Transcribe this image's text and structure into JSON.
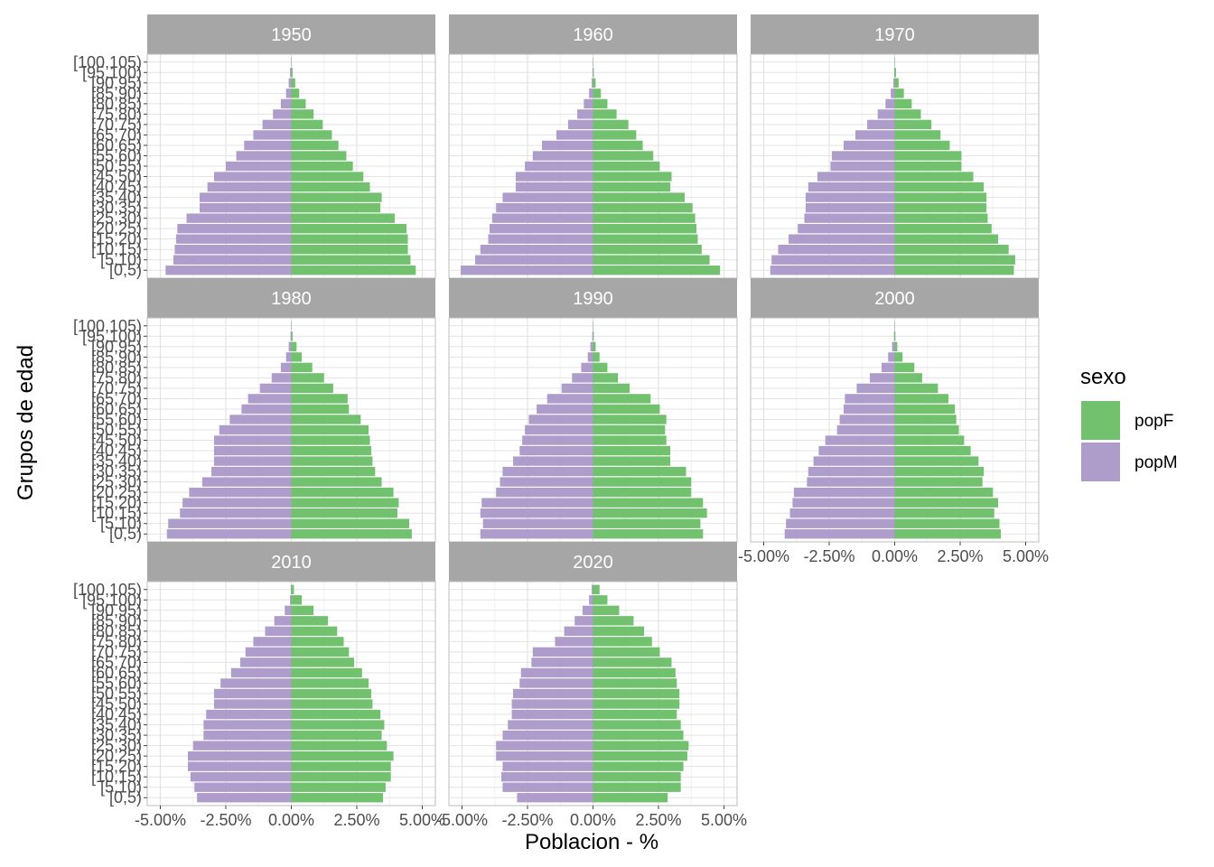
{
  "chart_data": {
    "type": "bar",
    "subtype": "population-pyramid-facets",
    "xlabel": "Poblacion - %",
    "ylabel": "Grupos de edad",
    "xlim": [
      -5.5,
      5.5
    ],
    "x_ticks": [
      -5,
      -2.5,
      0,
      2.5,
      5
    ],
    "x_tick_labels": [
      "-5.00%",
      "-2.50%",
      "0.00%",
      "2.50%",
      "5.00%"
    ],
    "grid": true,
    "legend": {
      "title": "sexo",
      "position": "right",
      "entries": [
        {
          "label": "popF",
          "color": "#71C16E"
        },
        {
          "label": "popM",
          "color": "#AE9CCB"
        }
      ]
    },
    "categories": [
      "[0,5)",
      "[5,10)",
      "[10,15)",
      "[15,20)",
      "[20,25)",
      "[25,30)",
      "[30,35)",
      "[35,40)",
      "[40,45)",
      "[45,50)",
      "[50,55)",
      "[55,60)",
      "[60,65)",
      "[65,70)",
      "[70,75)",
      "[75,80)",
      "[80,85)",
      "[85,90)",
      "[90,95)",
      "[95,100)",
      "[100,105)"
    ],
    "panels": [
      {
        "label": "1950",
        "popF": [
          4.75,
          4.55,
          4.45,
          4.45,
          4.4,
          3.95,
          3.4,
          3.45,
          3.0,
          2.75,
          2.35,
          2.1,
          1.8,
          1.55,
          1.2,
          0.85,
          0.55,
          0.3,
          0.15,
          0.05,
          0.01
        ],
        "popM": [
          -4.8,
          -4.5,
          -4.45,
          -4.4,
          -4.35,
          -4.0,
          -3.5,
          -3.5,
          -3.2,
          -2.95,
          -2.5,
          -2.1,
          -1.8,
          -1.45,
          -1.1,
          -0.7,
          -0.4,
          -0.2,
          -0.1,
          -0.05,
          -0.01
        ]
      },
      {
        "label": "1960",
        "popF": [
          4.85,
          4.45,
          4.15,
          4.0,
          3.95,
          3.9,
          3.8,
          3.5,
          2.95,
          3.0,
          2.55,
          2.3,
          1.9,
          1.65,
          1.35,
          0.9,
          0.55,
          0.3,
          0.1,
          0.03,
          0.01
        ],
        "popM": [
          -5.05,
          -4.5,
          -4.3,
          -4.0,
          -3.95,
          -3.85,
          -3.7,
          -3.45,
          -2.95,
          -2.95,
          -2.6,
          -2.3,
          -1.95,
          -1.4,
          -0.95,
          -0.6,
          -0.35,
          -0.15,
          -0.05,
          -0.02,
          -0.01
        ]
      },
      {
        "label": "1970",
        "popF": [
          4.55,
          4.6,
          4.35,
          3.95,
          3.7,
          3.55,
          3.5,
          3.5,
          3.4,
          3.0,
          2.55,
          2.55,
          2.1,
          1.75,
          1.4,
          1.0,
          0.65,
          0.35,
          0.15,
          0.05,
          0.01
        ],
        "popM": [
          -4.75,
          -4.7,
          -4.45,
          -4.05,
          -3.7,
          -3.45,
          -3.4,
          -3.4,
          -3.3,
          -2.95,
          -2.45,
          -2.4,
          -1.95,
          -1.5,
          -1.05,
          -0.65,
          -0.35,
          -0.15,
          -0.05,
          -0.02,
          -0.01
        ]
      },
      {
        "label": "1980",
        "popF": [
          4.6,
          4.5,
          4.05,
          4.1,
          3.9,
          3.45,
          3.2,
          3.1,
          3.05,
          3.0,
          2.95,
          2.65,
          2.2,
          2.15,
          1.6,
          1.25,
          0.8,
          0.4,
          0.2,
          0.05,
          0.01
        ],
        "popM": [
          -4.75,
          -4.7,
          -4.25,
          -4.15,
          -3.9,
          -3.4,
          -3.05,
          -2.95,
          -2.95,
          -2.95,
          -2.75,
          -2.35,
          -1.9,
          -1.65,
          -1.2,
          -0.75,
          -0.4,
          -0.2,
          -0.1,
          -0.03,
          -0.01
        ]
      },
      {
        "label": "1990",
        "popF": [
          4.2,
          4.1,
          4.35,
          4.2,
          3.75,
          3.75,
          3.55,
          2.95,
          2.95,
          2.8,
          2.75,
          2.8,
          2.55,
          2.2,
          1.4,
          0.95,
          0.55,
          0.25,
          0.1,
          0.03,
          0.01
        ],
        "popM": [
          -4.3,
          -4.2,
          -4.3,
          -4.25,
          -3.7,
          -3.55,
          -3.45,
          -3.05,
          -2.8,
          -2.7,
          -2.6,
          -2.45,
          -2.15,
          -1.75,
          -1.2,
          -0.8,
          -0.45,
          -0.2,
          -0.1,
          -0.03,
          -0.01
        ]
      },
      {
        "label": "2000",
        "popF": [
          4.05,
          4.0,
          3.8,
          3.95,
          3.75,
          3.35,
          3.4,
          3.2,
          2.9,
          2.65,
          2.45,
          2.35,
          2.3,
          2.05,
          1.65,
          1.05,
          0.75,
          0.3,
          0.1,
          0.03,
          0.01
        ],
        "popM": [
          -4.2,
          -4.15,
          -4.0,
          -3.9,
          -3.85,
          -3.35,
          -3.3,
          -3.1,
          -2.9,
          -2.65,
          -2.2,
          -2.1,
          -1.95,
          -1.9,
          -1.45,
          -0.95,
          -0.5,
          -0.25,
          -0.1,
          -0.03,
          -0.01
        ]
      },
      {
        "label": "2010",
        "popF": [
          3.5,
          3.6,
          3.8,
          3.8,
          3.9,
          3.65,
          3.45,
          3.55,
          3.4,
          3.1,
          3.05,
          2.95,
          2.7,
          2.4,
          2.2,
          2.0,
          1.75,
          1.4,
          0.85,
          0.4,
          0.1
        ],
        "popM": [
          -3.6,
          -3.7,
          -3.85,
          -3.95,
          -3.95,
          -3.75,
          -3.35,
          -3.35,
          -3.25,
          -2.95,
          -2.95,
          -2.7,
          -2.3,
          -1.95,
          -1.75,
          -1.45,
          -1.0,
          -0.65,
          -0.25,
          -0.05,
          -0.02
        ]
      },
      {
        "label": "2020",
        "popF": [
          2.85,
          3.35,
          3.35,
          3.45,
          3.6,
          3.65,
          3.45,
          3.35,
          3.2,
          3.3,
          3.3,
          3.2,
          3.15,
          3.0,
          2.55,
          2.25,
          1.95,
          1.55,
          1.0,
          0.55,
          0.25
        ],
        "popM": [
          -2.9,
          -3.45,
          -3.5,
          -3.45,
          -3.7,
          -3.7,
          -3.45,
          -3.25,
          -3.1,
          -3.1,
          -3.05,
          -2.8,
          -2.75,
          -2.35,
          -2.3,
          -1.45,
          -1.1,
          -0.7,
          -0.4,
          -0.15,
          -0.05
        ]
      }
    ]
  }
}
